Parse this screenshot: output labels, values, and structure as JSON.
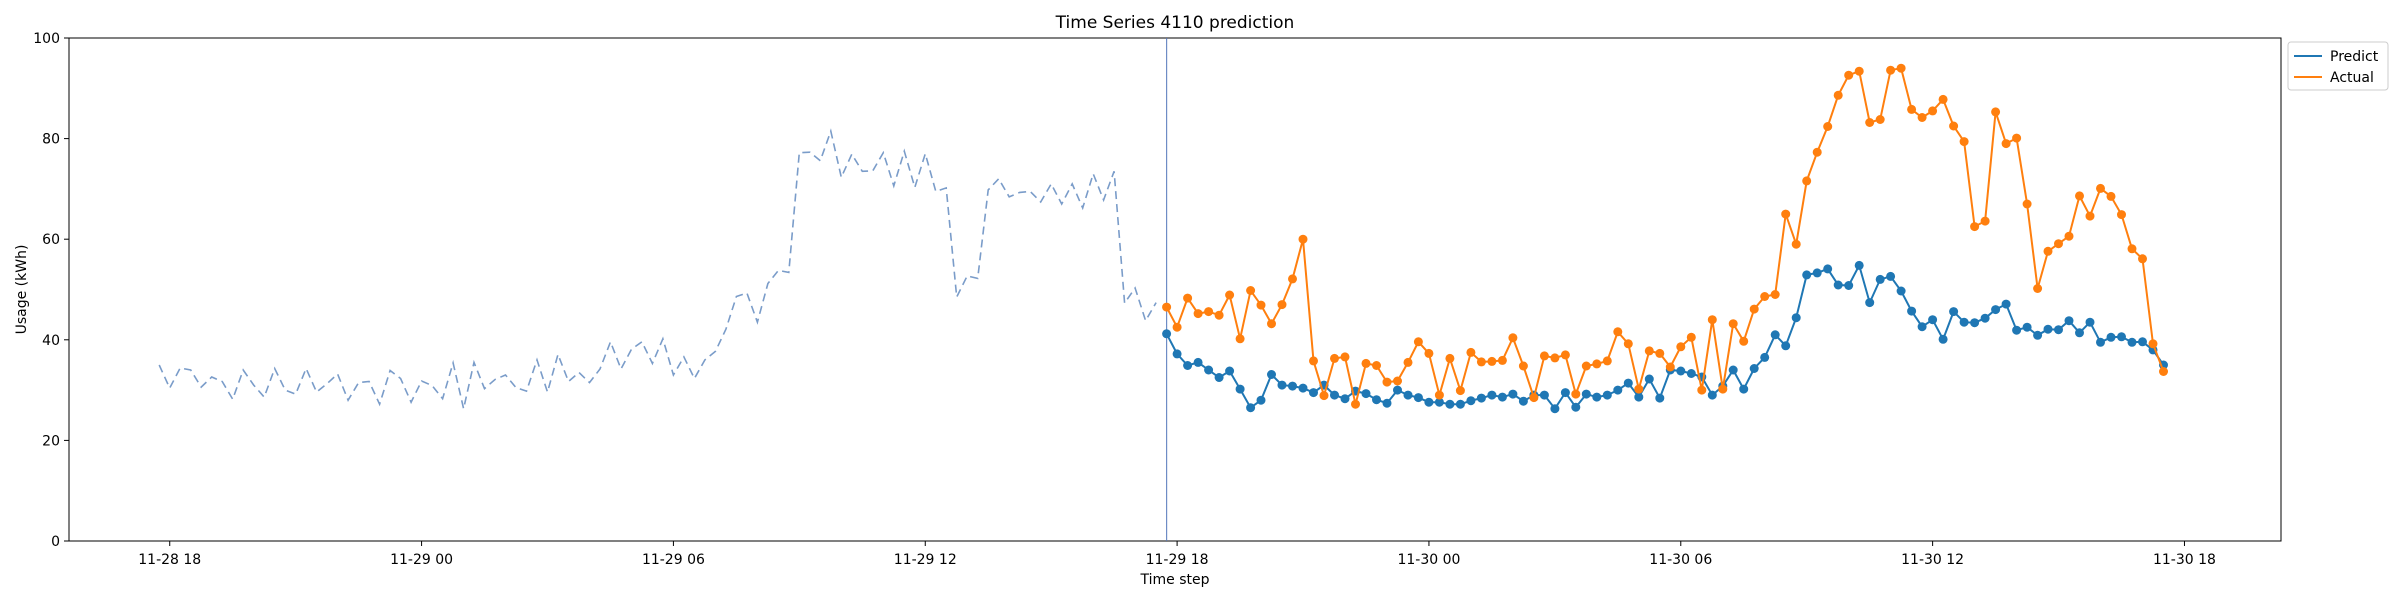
{
  "chart_data": {
    "type": "line",
    "title": "Time Series 4110 prediction",
    "xlabel": "Time step",
    "ylabel": "Usage (kWh)",
    "ylim": [
      0,
      100
    ],
    "yticks": [
      0,
      20,
      40,
      60,
      80,
      100
    ],
    "xticks": [
      {
        "t": 0,
        "label": "11-28 18"
      },
      {
        "t": 6,
        "label": "11-29 00"
      },
      {
        "t": 12,
        "label": "11-29 06"
      },
      {
        "t": 18,
        "label": "11-29 12"
      },
      {
        "t": 24,
        "label": "11-29 18"
      },
      {
        "t": 30,
        "label": "11-30 00"
      },
      {
        "t": 36,
        "label": "11-30 06"
      },
      {
        "t": 42,
        "label": "11-30 12"
      },
      {
        "t": 48,
        "label": "11-30 18"
      }
    ],
    "xlim_hours": [
      -2.4,
      50.3
    ],
    "forecast_start_hours": 23.75,
    "history": {
      "start_hours": -0.25,
      "step_hours": 0.25,
      "values": [
        35.0,
        30.4,
        34.4,
        34.0,
        30.6,
        32.6,
        31.7,
        28.2,
        34.0,
        31.0,
        28.6,
        34.3,
        30.0,
        29.2,
        34.3,
        29.6,
        31.3,
        33.2,
        28.0,
        31.5,
        31.7,
        27.2,
        33.9,
        32.3,
        27.6,
        31.8,
        30.9,
        28.3,
        35.4,
        26.3,
        35.5,
        30.3,
        32.1,
        33.0,
        30.5,
        29.8,
        36.0,
        29.6,
        37.1,
        31.7,
        33.5,
        31.5,
        34.2,
        39.6,
        34.2,
        38.1,
        39.6,
        35.3,
        40.2,
        33.0,
        36.6,
        32.3,
        36.0,
        37.7,
        42.1,
        48.6,
        49.3,
        43.5,
        51.2,
        53.8,
        53.4,
        77.2,
        77.3,
        75.6,
        81.5,
        72.3,
        76.9,
        73.5,
        73.6,
        77.2,
        70.6,
        77.5,
        70.3,
        77.0,
        69.5,
        70.2,
        48.5,
        52.7,
        52.2,
        69.8,
        72.0,
        68.4,
        69.3,
        69.5,
        67.4,
        71.0,
        67.0,
        71.0,
        66.2,
        73.0,
        67.8,
        73.5,
        47.3,
        50.3,
        43.8,
        47.4
      ]
    },
    "forecast_x": {
      "start_hours": 23.75,
      "step_hours": 0.25
    },
    "series": [
      {
        "name": "Predict",
        "color": "#1f77b4",
        "values": [
          41.2,
          37.2,
          34.9,
          35.5,
          34.0,
          32.5,
          33.8,
          30.2,
          26.5,
          28.0,
          33.1,
          31.0,
          30.8,
          30.4,
          29.5,
          31.0,
          29.0,
          28.3,
          29.8,
          29.3,
          28.1,
          27.4,
          30.0,
          29.0,
          28.5,
          27.6,
          27.6,
          27.2,
          27.2,
          27.9,
          28.4,
          29.0,
          28.6,
          29.2,
          27.8,
          29.0,
          29.0,
          26.3,
          29.5,
          26.6,
          29.2,
          28.6,
          29.0,
          30.0,
          31.4,
          28.6,
          32.2,
          28.4,
          34.0,
          33.8,
          33.3,
          32.6,
          29.0,
          30.8,
          34.0,
          30.2,
          34.3,
          36.5,
          41.0,
          38.8,
          44.4,
          52.9,
          53.3,
          54.1,
          50.9,
          50.8,
          54.8,
          47.4,
          52.0,
          52.6,
          49.7,
          45.7,
          42.6,
          44.0,
          40.1,
          45.6,
          43.5,
          43.4,
          44.3,
          46.0,
          47.1,
          41.9,
          42.5,
          40.9,
          42.1,
          42.0,
          43.8,
          41.4,
          43.5,
          39.5,
          40.5,
          40.6,
          39.5,
          39.6,
          38.0,
          35.0
        ]
      },
      {
        "name": "Actual",
        "color": "#ff7f0e",
        "values": [
          46.5,
          42.5,
          48.3,
          45.2,
          45.6,
          44.9,
          48.9,
          40.2,
          49.8,
          46.9,
          43.2,
          47.0,
          52.1,
          60.0,
          35.8,
          28.9,
          36.3,
          36.6,
          27.2,
          35.3,
          34.9,
          31.6,
          31.8,
          35.5,
          39.6,
          37.3,
          29.0,
          36.3,
          29.9,
          37.5,
          35.6,
          35.7,
          35.9,
          40.4,
          34.8,
          28.5,
          36.8,
          36.4,
          37.0,
          29.2,
          34.8,
          35.2,
          35.8,
          41.6,
          39.2,
          30.2,
          37.8,
          37.3,
          34.6,
          38.6,
          40.5,
          30.0,
          44.0,
          30.2,
          43.2,
          39.7,
          46.1,
          48.6,
          49.0,
          65.0,
          59.0,
          71.6,
          77.3,
          82.4,
          88.6,
          92.6,
          93.4,
          83.2,
          83.8,
          93.6,
          94.0,
          85.8,
          84.2,
          85.5,
          87.8,
          82.5,
          79.4,
          62.5,
          63.6,
          85.3,
          79.0,
          80.1,
          67.0,
          50.2,
          57.6,
          59.1,
          60.6,
          68.6,
          64.6,
          70.1,
          68.5,
          64.9,
          58.1,
          56.1,
          39.2,
          33.7
        ]
      }
    ],
    "legend": {
      "position": "outside-top-right"
    }
  }
}
